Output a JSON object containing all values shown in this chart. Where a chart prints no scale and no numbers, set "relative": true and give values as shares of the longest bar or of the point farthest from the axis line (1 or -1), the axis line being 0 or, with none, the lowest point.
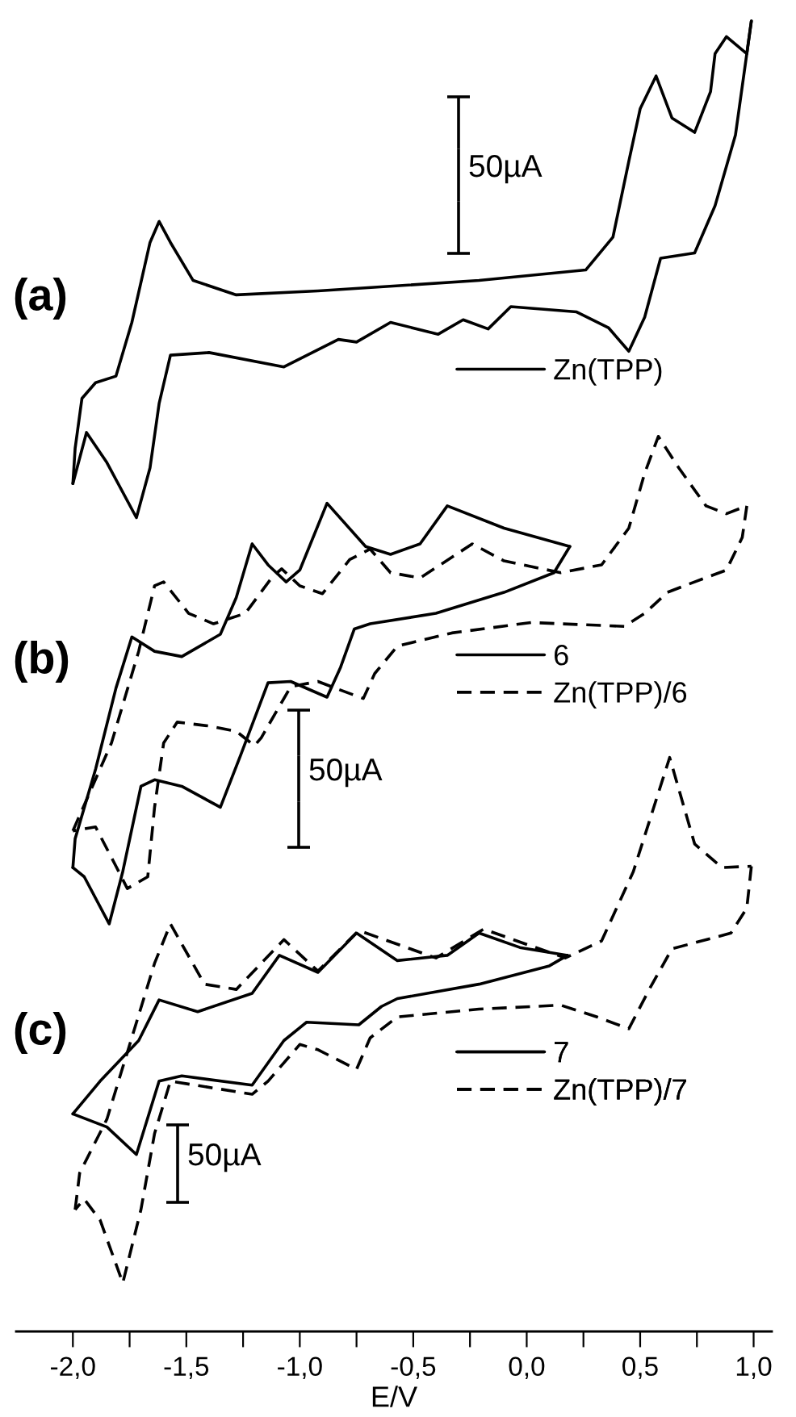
{
  "chart_data": {
    "type": "line",
    "relative": true,
    "xlabel": "E/V",
    "xlim": [
      -2.25,
      1.08
    ],
    "xticks": [
      {
        "value": -2.0,
        "label": "-2,0"
      },
      {
        "value": -1.75,
        "label": null
      },
      {
        "value": -1.5,
        "label": "-1,5"
      },
      {
        "value": -1.25,
        "label": null
      },
      {
        "value": -1.0,
        "label": "-1,0"
      },
      {
        "value": -0.75,
        "label": null
      },
      {
        "value": -0.5,
        "label": "-0,5"
      },
      {
        "value": -0.25,
        "label": null
      },
      {
        "value": 0.0,
        "label": "0,0"
      },
      {
        "value": 0.25,
        "label": null
      },
      {
        "value": 0.5,
        "label": "0,5"
      },
      {
        "value": 0.75,
        "label": null
      },
      {
        "value": 1.0,
        "label": "1,0"
      }
    ],
    "legend": "right",
    "annotations": [
      "(a)",
      "(b)",
      "(c)",
      "50µA",
      "50µA",
      "50µA"
    ],
    "series": [
      {
        "name": "Zn(TPP)",
        "color": "#000000",
        "line_style": "solid",
        "x": [
          -2.0,
          -1.94,
          -1.85,
          -1.72,
          -1.66,
          -1.62,
          -1.57,
          -1.4,
          -1.07,
          -0.83,
          -0.75,
          -0.6,
          -0.39,
          -0.28,
          -0.17,
          -0.07,
          0.22,
          0.36,
          0.45,
          0.52,
          0.59,
          0.74,
          0.83,
          0.92,
          0.99
        ],
        "values": [
          0.647,
          0.686,
          0.663,
          0.621,
          0.659,
          0.708,
          0.745,
          0.747,
          0.736,
          0.757,
          0.755,
          0.77,
          0.761,
          0.772,
          0.765,
          0.782,
          0.778,
          0.766,
          0.748,
          0.774,
          0.819,
          0.823,
          0.859,
          0.913,
          1.0
        ]
      },
      {
        "color": "#000000",
        "line_style": "solid",
        "x": [
          0.99,
          0.97,
          0.88,
          0.83,
          0.81,
          0.74,
          0.64,
          0.57,
          0.5,
          0.45,
          0.38,
          0.26,
          -0.21,
          -0.92,
          -1.28,
          -1.47,
          -1.57,
          -1.62,
          -1.66,
          -1.74,
          -1.81,
          -1.9,
          -1.96,
          -1.99,
          -2.0
        ],
        "values": [
          1.0,
          0.975,
          0.988,
          0.975,
          0.946,
          0.915,
          0.926,
          0.958,
          0.933,
          0.893,
          0.835,
          0.81,
          0.802,
          0.794,
          0.791,
          0.802,
          0.831,
          0.847,
          0.831,
          0.77,
          0.729,
          0.724,
          0.712,
          0.674,
          0.647
        ]
      },
      {
        "name": "6",
        "color": "#000000",
        "line_style": "solid",
        "x": [
          -2.0,
          -1.95,
          -1.84,
          -1.78,
          -1.7,
          -1.64,
          -1.52,
          -1.35,
          -1.26,
          -1.14,
          -1.04,
          -0.88,
          -0.82,
          -0.76,
          -0.69,
          -0.4,
          -0.1,
          0.12,
          0.19
        ],
        "values": [
          0.354,
          0.347,
          0.311,
          0.351,
          0.416,
          0.421,
          0.416,
          0.4,
          0.44,
          0.495,
          0.496,
          0.484,
          0.507,
          0.536,
          0.54,
          0.548,
          0.564,
          0.579,
          0.599
        ]
      },
      {
        "color": "#000000",
        "line_style": "solid",
        "x": [
          0.19,
          -0.1,
          -0.35,
          -0.47,
          -0.6,
          -0.71,
          -0.88,
          -1.0,
          -1.06,
          -1.14,
          -1.21,
          -1.28,
          -1.35,
          -1.52,
          -1.64,
          -1.74,
          -1.81,
          -1.9,
          -1.99,
          -2.0
        ],
        "values": [
          0.599,
          0.613,
          0.63,
          0.601,
          0.593,
          0.599,
          0.632,
          0.581,
          0.572,
          0.585,
          0.601,
          0.56,
          0.532,
          0.515,
          0.519,
          0.53,
          0.491,
          0.429,
          0.376,
          0.354
        ]
      },
      {
        "name": "Zn(TPP)/6",
        "color": "#000000",
        "line_style": "dashed",
        "x": [
          -2.0,
          -1.83,
          -1.71,
          -1.64,
          -1.6,
          -1.49,
          -1.38,
          -1.24,
          -1.12,
          -1.08,
          -1.0,
          -0.9,
          -0.78,
          -0.69,
          -0.6,
          -0.47,
          -0.31,
          -0.24,
          -0.1,
          0.15,
          0.33,
          0.45,
          0.52,
          0.58,
          0.67,
          0.79,
          0.88,
          0.97
        ],
        "values": [
          0.382,
          0.449,
          0.519,
          0.569,
          0.572,
          0.548,
          0.54,
          0.548,
          0.576,
          0.582,
          0.569,
          0.563,
          0.589,
          0.597,
          0.579,
          0.575,
          0.593,
          0.601,
          0.588,
          0.579,
          0.585,
          0.613,
          0.655,
          0.683,
          0.659,
          0.63,
          0.624,
          0.63
        ]
      },
      {
        "color": "#000000",
        "line_style": "dashed",
        "x": [
          0.97,
          0.95,
          0.88,
          0.74,
          0.62,
          0.52,
          0.43,
          0.02,
          -0.33,
          -0.57,
          -0.67,
          -0.72,
          -0.83,
          -0.92,
          -1.04,
          -1.17,
          -1.2,
          -1.28,
          -1.4,
          -1.54,
          -1.6,
          -1.64,
          -1.67,
          -1.76,
          -1.81,
          -1.9,
          -2.0
        ],
        "values": [
          0.63,
          0.606,
          0.581,
          0.572,
          0.564,
          0.548,
          0.538,
          0.541,
          0.533,
          0.523,
          0.502,
          0.483,
          0.49,
          0.496,
          0.492,
          0.453,
          0.447,
          0.458,
          0.462,
          0.465,
          0.449,
          0.4,
          0.347,
          0.338,
          0.355,
          0.385,
          0.382
        ]
      },
      {
        "name": "7",
        "color": "#000000",
        "line_style": "solid",
        "x": [
          -2.0,
          -1.88,
          -1.71,
          -1.62,
          -1.45,
          -1.21,
          -1.09,
          -0.92,
          -0.75,
          -0.57,
          -0.35,
          -0.21,
          -0.03,
          0.18
        ],
        "values": [
          0.166,
          0.191,
          0.222,
          0.253,
          0.244,
          0.258,
          0.287,
          0.274,
          0.304,
          0.283,
          0.287,
          0.304,
          0.293,
          0.287
        ]
      },
      {
        "color": "#000000",
        "line_style": "solid",
        "x": [
          0.18,
          0.1,
          -0.21,
          -0.57,
          -0.64,
          -0.74,
          -0.97,
          -1.07,
          -1.21,
          -1.52,
          -1.62,
          -1.72,
          -1.85,
          -2.0
        ],
        "values": [
          0.287,
          0.279,
          0.265,
          0.254,
          0.248,
          0.234,
          0.236,
          0.222,
          0.188,
          0.195,
          0.191,
          0.135,
          0.156,
          0.166
        ]
      },
      {
        "name": "Zn(TPP)/7",
        "color": "#000000",
        "line_style": "dashed",
        "x": [
          -1.99,
          -1.97,
          -1.85,
          -1.64,
          -1.57,
          -1.42,
          -1.28,
          -1.07,
          -0.92,
          -0.74,
          -0.4,
          -0.19,
          0.17,
          0.33,
          0.47,
          0.63,
          0.74,
          0.86,
          0.99
        ],
        "values": [
          0.093,
          0.121,
          0.162,
          0.281,
          0.311,
          0.265,
          0.261,
          0.299,
          0.275,
          0.306,
          0.285,
          0.307,
          0.285,
          0.298,
          0.351,
          0.438,
          0.372,
          0.354,
          0.355
        ]
      },
      {
        "color": "#000000",
        "line_style": "dashed",
        "x": [
          0.99,
          0.97,
          0.9,
          0.64,
          0.54,
          0.45,
          0.31,
          0.15,
          -0.21,
          -0.57,
          -0.69,
          -0.75,
          -0.92,
          -1.0,
          -1.14,
          -1.21,
          -1.57,
          -1.64,
          -1.7,
          -1.78,
          -1.88,
          -1.95,
          -1.99
        ],
        "values": [
          0.355,
          0.323,
          0.304,
          0.292,
          0.261,
          0.231,
          0.24,
          0.249,
          0.246,
          0.24,
          0.224,
          0.2,
          0.215,
          0.219,
          0.191,
          0.181,
          0.191,
          0.151,
          0.093,
          0.037,
          0.085,
          0.101,
          0.093
        ]
      }
    ]
  }
}
